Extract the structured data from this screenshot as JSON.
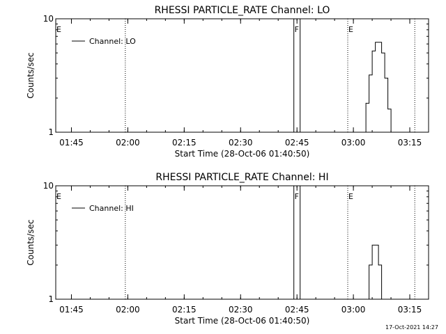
{
  "chart_data": [
    {
      "type": "line",
      "title": "RHESSI PARTICLE_RATE Channel: LO",
      "xlabel": "Start Time (28-Oct-06 01:40:50)",
      "ylabel": "Counts/sec",
      "yscale": "log",
      "ylim": [
        1,
        10
      ],
      "xlim": [
        "01:40:50",
        "03:20:00"
      ],
      "x_ticks": [
        "01:45",
        "02:00",
        "02:15",
        "02:30",
        "02:45",
        "03:00",
        "03:15"
      ],
      "y_ticks": [
        "1",
        "10"
      ],
      "legend": {
        "label": "Channel: LO",
        "position": "top-left"
      },
      "markers": [
        {
          "label": "E",
          "time": "01:40:50",
          "style": "dotted"
        },
        {
          "label": "",
          "time": "01:59:20",
          "style": "dotted"
        },
        {
          "label": "F",
          "time": "02:44:10",
          "style": "solid"
        },
        {
          "label": "",
          "time": "02:45:50",
          "style": "solid"
        },
        {
          "label": "E",
          "time": "02:58:30",
          "style": "dotted"
        },
        {
          "label": "",
          "time": "03:16:20",
          "style": "dotted"
        }
      ],
      "series": [
        {
          "name": "Channel: LO",
          "points": [
            [
              "03:03:20",
              1.0
            ],
            [
              "03:03:20",
              1.8
            ],
            [
              "03:04:10",
              1.8
            ],
            [
              "03:04:10",
              3.2
            ],
            [
              "03:05:00",
              3.2
            ],
            [
              "03:05:00",
              5.2
            ],
            [
              "03:05:50",
              5.2
            ],
            [
              "03:05:50",
              6.2
            ],
            [
              "03:07:30",
              6.2
            ],
            [
              "03:07:30",
              5.0
            ],
            [
              "03:08:20",
              5.0
            ],
            [
              "03:08:20",
              3.0
            ],
            [
              "03:09:10",
              3.0
            ],
            [
              "03:09:10",
              1.6
            ],
            [
              "03:10:00",
              1.6
            ],
            [
              "03:10:00",
              1.0
            ]
          ]
        }
      ]
    },
    {
      "type": "line",
      "title": "RHESSI PARTICLE_RATE Channel: HI",
      "xlabel": "Start Time (28-Oct-06 01:40:50)",
      "ylabel": "Counts/sec",
      "yscale": "log",
      "ylim": [
        1,
        10
      ],
      "xlim": [
        "01:40:50",
        "03:20:00"
      ],
      "x_ticks": [
        "01:45",
        "02:00",
        "02:15",
        "02:30",
        "02:45",
        "03:00",
        "03:15"
      ],
      "y_ticks": [
        "1",
        "10"
      ],
      "legend": {
        "label": "Channel: HI",
        "position": "top-left"
      },
      "markers": [
        {
          "label": "E",
          "time": "01:40:50",
          "style": "dotted"
        },
        {
          "label": "",
          "time": "01:59:20",
          "style": "dotted"
        },
        {
          "label": "F",
          "time": "02:44:10",
          "style": "solid"
        },
        {
          "label": "",
          "time": "02:45:50",
          "style": "solid"
        },
        {
          "label": "E",
          "time": "02:58:30",
          "style": "dotted"
        },
        {
          "label": "",
          "time": "03:16:20",
          "style": "dotted"
        }
      ],
      "series": [
        {
          "name": "Channel: HI",
          "points": [
            [
              "03:04:10",
              1.0
            ],
            [
              "03:04:10",
              2.0
            ],
            [
              "03:05:00",
              2.0
            ],
            [
              "03:05:00",
              3.0
            ],
            [
              "03:06:40",
              3.0
            ],
            [
              "03:06:40",
              2.0
            ],
            [
              "03:07:30",
              2.0
            ],
            [
              "03:07:30",
              1.0
            ]
          ]
        }
      ]
    }
  ],
  "footer": {
    "date": "17-Oct-2021 14:27"
  }
}
